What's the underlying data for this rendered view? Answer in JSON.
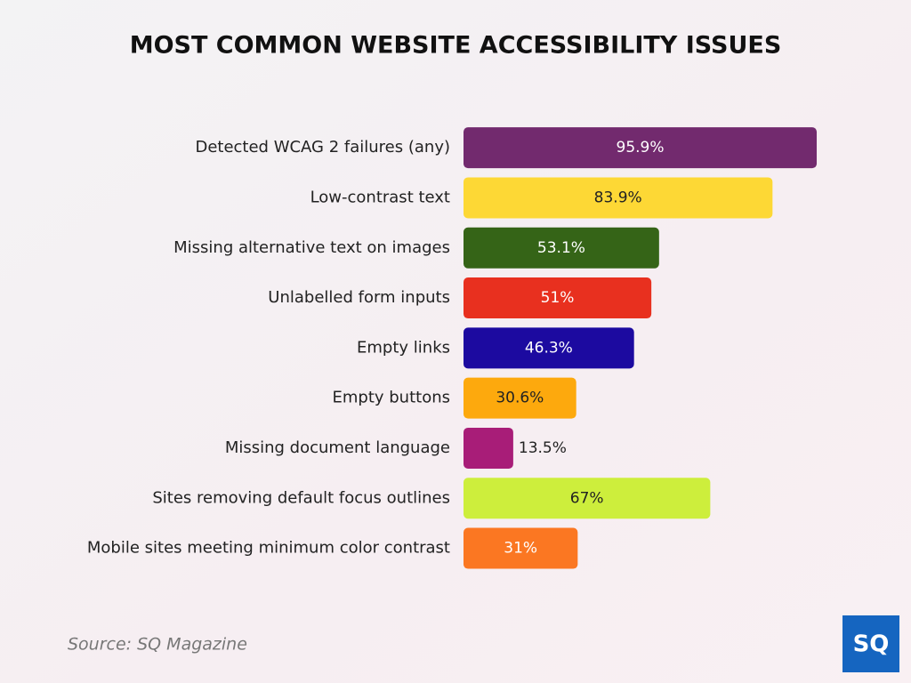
{
  "chart_data": {
    "type": "bar",
    "orientation": "horizontal",
    "title": "MOST COMMON WEBSITE ACCESSIBILITY ISSUES",
    "categories": [
      "Detected WCAG 2 failures (any)",
      "Low-contrast text",
      "Missing alternative text on images",
      "Unlabelled form inputs",
      "Empty links",
      "Empty buttons",
      "Missing document language",
      "Sites removing default focus outlines",
      "Mobile sites meeting minimum color contrast"
    ],
    "values": [
      95.9,
      83.9,
      53.1,
      51,
      46.3,
      30.6,
      13.5,
      67,
      31
    ],
    "value_labels": [
      "95.9%",
      "83.9%",
      "53.1%",
      "51%",
      "46.3%",
      "30.6%",
      "13.5%",
      "67%",
      "31%"
    ],
    "colors": [
      "#722a6e",
      "#fdd835",
      "#356417",
      "#e8301f",
      "#1c0aa0",
      "#fda90d",
      "#a81d78",
      "#cdee3c",
      "#fb7722"
    ],
    "xlim": [
      0,
      100
    ],
    "source": "Source: SQ Magazine",
    "logo": "SQ"
  }
}
